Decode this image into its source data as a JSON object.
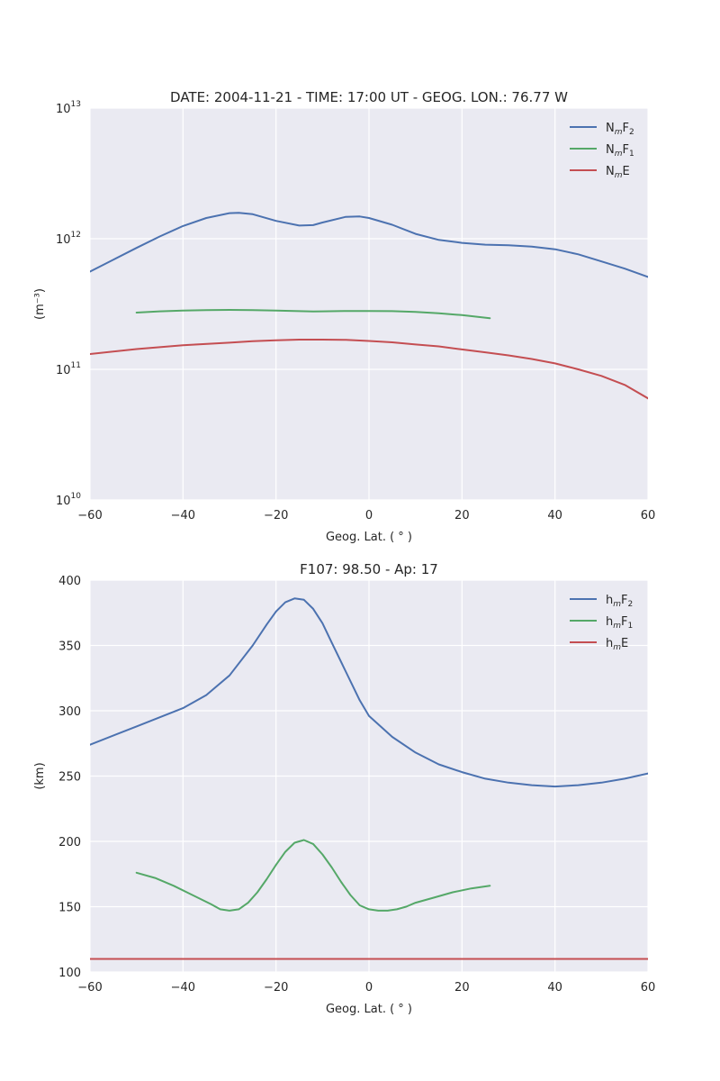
{
  "chart_data": [
    {
      "type": "line",
      "title": "DATE: 2004-11-21 - TIME: 17:00 UT  -  GEOG. LON.:  76.77 W",
      "xlabel": "Geog. Lat. ( ° )",
      "ylabel": "(m⁻³)",
      "yscale": "log",
      "xlim": [
        -60,
        60
      ],
      "ylim": [
        10000000000.0,
        10000000000000.0
      ],
      "xticks": [
        -60,
        -40,
        -20,
        0,
        20,
        40,
        60
      ],
      "xtick_labels": [
        "−60",
        "−40",
        "−20",
        "0",
        "20",
        "40",
        "60"
      ],
      "ytick_exponents": [
        10,
        11,
        12,
        13
      ],
      "ytick_base": "10",
      "grid": true,
      "legend_position": "top-right",
      "series": [
        {
          "name": "NmF2",
          "legend": {
            "base": "N",
            "sub": "m",
            "tail": "F",
            "tailsub": "2"
          },
          "color": "#4c72b0",
          "x": [
            -60,
            -55,
            -50,
            -45,
            -40,
            -35,
            -30,
            -28,
            -25,
            -20,
            -15,
            -12,
            -10,
            -5,
            -2,
            0,
            5,
            10,
            15,
            20,
            25,
            30,
            35,
            40,
            45,
            50,
            55,
            60
          ],
          "y": [
            560000000000.0,
            690000000000.0,
            850000000000.0,
            1040000000000.0,
            1250000000000.0,
            1440000000000.0,
            1570000000000.0,
            1580000000000.0,
            1540000000000.0,
            1370000000000.0,
            1260000000000.0,
            1270000000000.0,
            1330000000000.0,
            1470000000000.0,
            1480000000000.0,
            1440000000000.0,
            1280000000000.0,
            1090000000000.0,
            980000000000.0,
            930000000000.0,
            900000000000.0,
            890000000000.0,
            870000000000.0,
            830000000000.0,
            760000000000.0,
            670000000000.0,
            590000000000.0,
            510000000000.0
          ]
        },
        {
          "name": "NmF1",
          "legend": {
            "base": "N",
            "sub": "m",
            "tail": "F",
            "tailsub": "1"
          },
          "color": "#55a868",
          "x": [
            -50,
            -45,
            -40,
            -35,
            -30,
            -25,
            -20,
            -15,
            -12,
            -10,
            -5,
            0,
            5,
            10,
            15,
            20,
            26
          ],
          "y": [
            272000000000.0,
            278000000000.0,
            282000000000.0,
            284000000000.0,
            285000000000.0,
            284000000000.0,
            282000000000.0,
            279000000000.0,
            277000000000.0,
            278000000000.0,
            280000000000.0,
            280000000000.0,
            279000000000.0,
            275000000000.0,
            269000000000.0,
            260000000000.0,
            246000000000.0
          ]
        },
        {
          "name": "NmE",
          "legend": {
            "base": "N",
            "sub": "m",
            "tail": "E",
            "tailsub": ""
          },
          "color": "#c44e52",
          "x": [
            -60,
            -50,
            -40,
            -30,
            -25,
            -20,
            -15,
            -10,
            -5,
            0,
            5,
            10,
            15,
            20,
            25,
            30,
            35,
            40,
            45,
            50,
            55,
            60
          ],
          "y": [
            131000000000.0,
            143000000000.0,
            153000000000.0,
            160000000000.0,
            164000000000.0,
            167000000000.0,
            169000000000.0,
            169000000000.0,
            168000000000.0,
            165000000000.0,
            161000000000.0,
            155000000000.0,
            150000000000.0,
            142000000000.0,
            135000000000.0,
            128000000000.0,
            120000000000.0,
            111000000000.0,
            100000000000.0,
            89000000000.0,
            76000000000.0,
            60000000000.0
          ]
        }
      ]
    },
    {
      "type": "line",
      "title": "F107:  98.50  -  Ap:  17",
      "xlabel": "Geog. Lat. ( ° )",
      "ylabel": "(km)",
      "yscale": "linear",
      "xlim": [
        -60,
        60
      ],
      "ylim": [
        100,
        400
      ],
      "xticks": [
        -60,
        -40,
        -20,
        0,
        20,
        40,
        60
      ],
      "xtick_labels": [
        "−60",
        "−40",
        "−20",
        "0",
        "20",
        "40",
        "60"
      ],
      "yticks": [
        100,
        150,
        200,
        250,
        300,
        350,
        400
      ],
      "ytick_labels": [
        "100",
        "150",
        "200",
        "250",
        "300",
        "350",
        "400"
      ],
      "grid": true,
      "legend_position": "top-right",
      "series": [
        {
          "name": "hmF2",
          "legend": {
            "base": "h",
            "sub": "m",
            "tail": "F",
            "tailsub": "2"
          },
          "color": "#4c72b0",
          "x": [
            -60,
            -50,
            -40,
            -35,
            -30,
            -25,
            -22,
            -20,
            -18,
            -16,
            -14,
            -12,
            -10,
            -8,
            -5,
            -2,
            0,
            5,
            10,
            15,
            20,
            25,
            30,
            35,
            40,
            45,
            50,
            55,
            60
          ],
          "y": [
            274,
            288,
            302,
            312,
            327,
            350,
            366,
            376,
            383,
            386,
            385,
            378,
            367,
            352,
            330,
            308,
            296,
            280,
            268,
            259,
            253,
            248,
            245,
            243,
            242,
            243,
            245,
            248,
            252
          ]
        },
        {
          "name": "hmF1",
          "legend": {
            "base": "h",
            "sub": "m",
            "tail": "F",
            "tailsub": "1"
          },
          "color": "#55a868",
          "x": [
            -50,
            -46,
            -42,
            -38,
            -34,
            -32,
            -30,
            -28,
            -26,
            -24,
            -22,
            -20,
            -18,
            -16,
            -14,
            -12,
            -10,
            -8,
            -6,
            -4,
            -2,
            0,
            2,
            4,
            6,
            8,
            10,
            14,
            18,
            22,
            26
          ],
          "y": [
            176,
            172,
            166,
            159,
            152,
            148,
            147,
            148,
            153,
            161,
            171,
            182,
            192,
            199,
            201,
            198,
            190,
            180,
            169,
            159,
            151,
            148,
            147,
            147,
            148,
            150,
            153,
            157,
            161,
            164,
            166
          ]
        },
        {
          "name": "hmE",
          "legend": {
            "base": "h",
            "sub": "m",
            "tail": "E",
            "tailsub": ""
          },
          "color": "#c44e52",
          "x": [
            -60,
            60
          ],
          "y": [
            110,
            110
          ]
        }
      ]
    }
  ]
}
